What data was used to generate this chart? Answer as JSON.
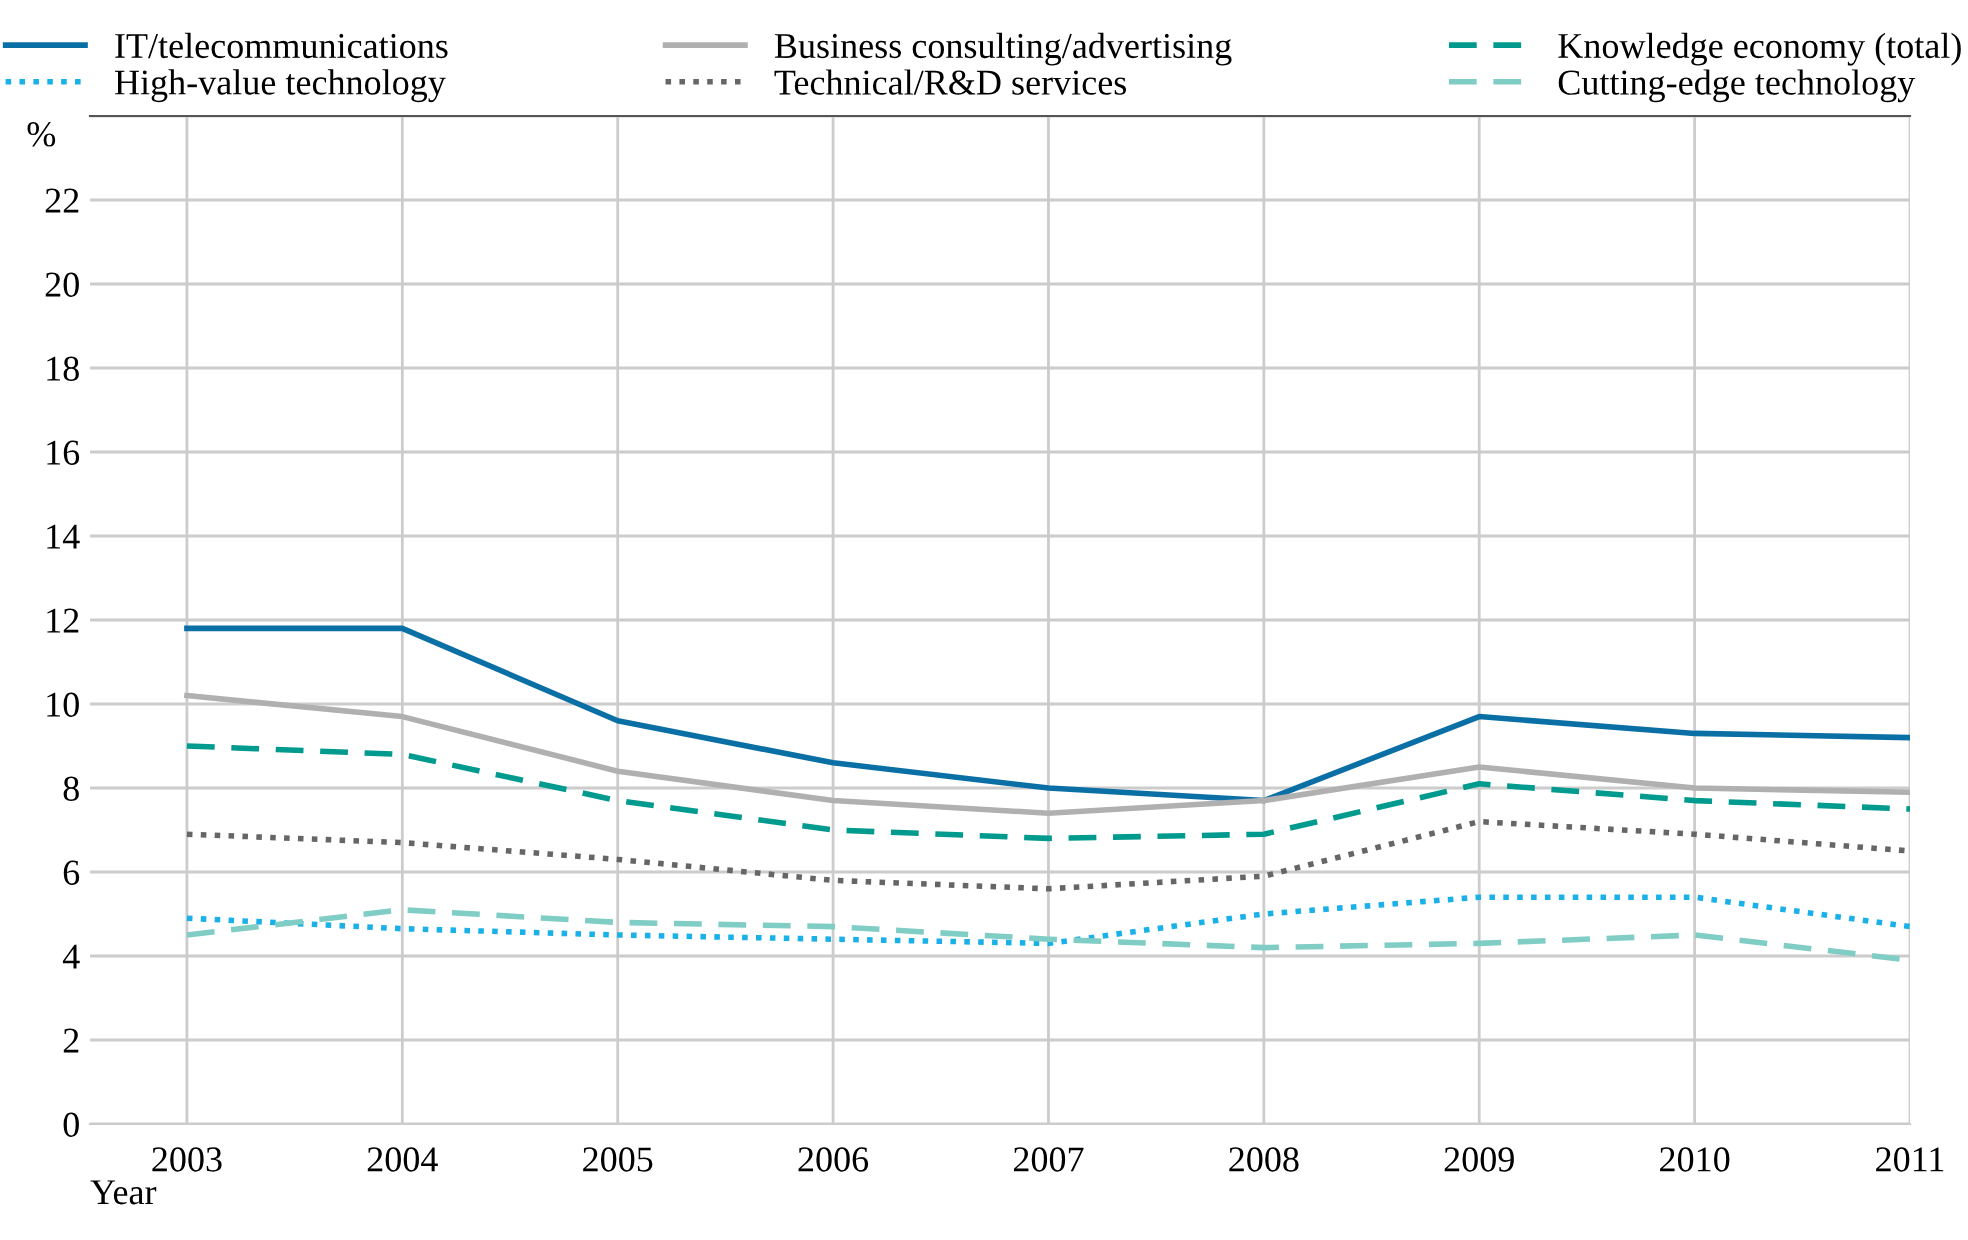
{
  "chart_data": {
    "type": "line",
    "ylabel": "%",
    "xlabel": "Year",
    "x": [
      2003,
      2004,
      2005,
      2006,
      2007,
      2008,
      2009,
      2010,
      2011
    ],
    "xlim": [
      2002.55,
      2011
    ],
    "xticks": [
      2003,
      2004,
      2005,
      2006,
      2007,
      2008,
      2009,
      2010,
      2011
    ],
    "ylim": [
      0,
      24
    ],
    "yticks": [
      0,
      2,
      4,
      6,
      8,
      10,
      12,
      14,
      16,
      18,
      20,
      22,
      {
        "value": 24,
        "label": null
      }
    ],
    "grid": true,
    "legend": "top",
    "series": [
      {
        "name": "IT/telecommunications",
        "color": "#0a6fa5",
        "line_style": "solid",
        "values": [
          11.8,
          11.8,
          9.6,
          8.6,
          8.0,
          7.7,
          9.7,
          9.3,
          9.2
        ]
      },
      {
        "name": "High-value technology",
        "color": "#1ab0e8",
        "line_style": "dotted",
        "values": [
          4.9,
          4.65,
          4.5,
          4.4,
          4.3,
          5.0,
          5.4,
          5.4,
          4.7
        ]
      },
      {
        "name": "Business consulting/advertising",
        "color": "#b0b0b0",
        "line_style": "solid",
        "values": [
          10.2,
          9.7,
          8.4,
          7.7,
          7.4,
          7.7,
          8.5,
          8.0,
          7.9
        ]
      },
      {
        "name": "Technical/R&D services",
        "color": "#666666",
        "line_style": "dotted",
        "values": [
          6.9,
          6.7,
          6.3,
          5.8,
          5.6,
          5.9,
          7.2,
          6.9,
          6.5
        ]
      },
      {
        "name": "Knowledge economy (total)",
        "color": "#009a8e",
        "line_style": "dashed",
        "values": [
          9.0,
          8.8,
          7.7,
          7.0,
          6.8,
          6.9,
          8.1,
          7.7,
          7.5
        ]
      },
      {
        "name": "Cutting-edge technology",
        "color": "#7fcdc4",
        "line_style": "dashed",
        "values": [
          4.5,
          5.1,
          4.8,
          4.7,
          4.4,
          4.2,
          4.3,
          4.5,
          3.9
        ]
      }
    ]
  }
}
